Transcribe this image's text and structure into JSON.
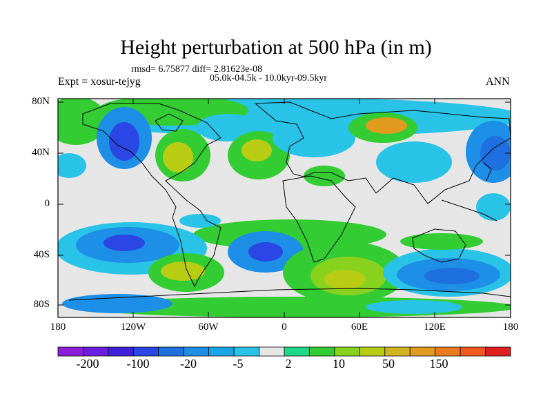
{
  "title": "Height perturbation at 500 hPa (in m)",
  "stats": "rmsd= 6.75877 diff= 2.81623e-08",
  "period": "05.0k-04.5k - 10.0kyr-09.5kyr",
  "experiment": "Expt = xosur-tejyg",
  "season": "ANN",
  "lat_labels": [
    "80N",
    "40N",
    "0",
    "40S",
    "80S"
  ],
  "lon_labels": [
    "180",
    "120W",
    "60W",
    "0",
    "60E",
    "120E",
    "180"
  ],
  "colorbar": {
    "labels": [
      "-200",
      "-100",
      "-20",
      "-5",
      "2",
      "10",
      "50",
      "150"
    ],
    "colors": [
      "#8b1fd6",
      "#6a1ee0",
      "#3f22d8",
      "#2a47e6",
      "#1e6fe0",
      "#1e8fe6",
      "#18a6e6",
      "#29c3e8",
      "#e6e6e6",
      "#1ed889",
      "#33cc33",
      "#88d21e",
      "#b8cc14",
      "#d2b41e",
      "#e09a1e",
      "#ec7a1e",
      "#ee5a1e",
      "#e01e1e"
    ]
  },
  "icons": {
    "coastline": "coastline-icon"
  }
}
